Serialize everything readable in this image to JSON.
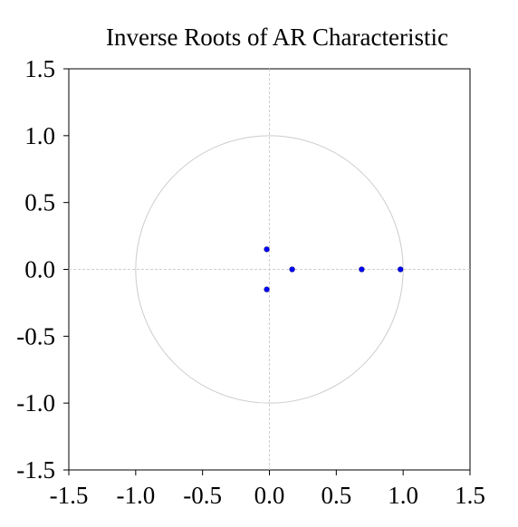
{
  "chart_data": {
    "type": "scatter",
    "title": "Inverse Roots of AR Characteristic",
    "xlabel": "",
    "ylabel": "",
    "xlim": [
      -1.5,
      1.5
    ],
    "ylim": [
      -1.5,
      1.5
    ],
    "xticks": [
      -1.5,
      -1.0,
      -0.5,
      0.0,
      0.5,
      1.0,
      1.5
    ],
    "yticks": [
      1.5,
      1.0,
      0.5,
      0.0,
      -0.5,
      -1.0,
      -1.5
    ],
    "xtick_labels": [
      "-1.5",
      "-1.0",
      "-0.5",
      "0.0",
      "0.5",
      "1.0",
      "1.5"
    ],
    "ytick_labels": [
      "1.5",
      "1.0",
      "0.5",
      "0.0",
      "-0.5",
      "-1.0",
      "-1.5"
    ],
    "unit_circle_radius": 1.0,
    "grid": false,
    "zero_lines": true,
    "point_color": "#0000ff",
    "circle_color": "#cccccc",
    "points": [
      {
        "x": -0.02,
        "y": 0.15
      },
      {
        "x": -0.02,
        "y": -0.15
      },
      {
        "x": 0.17,
        "y": 0.0
      },
      {
        "x": 0.69,
        "y": 0.0
      },
      {
        "x": 0.98,
        "y": 0.0
      }
    ]
  }
}
